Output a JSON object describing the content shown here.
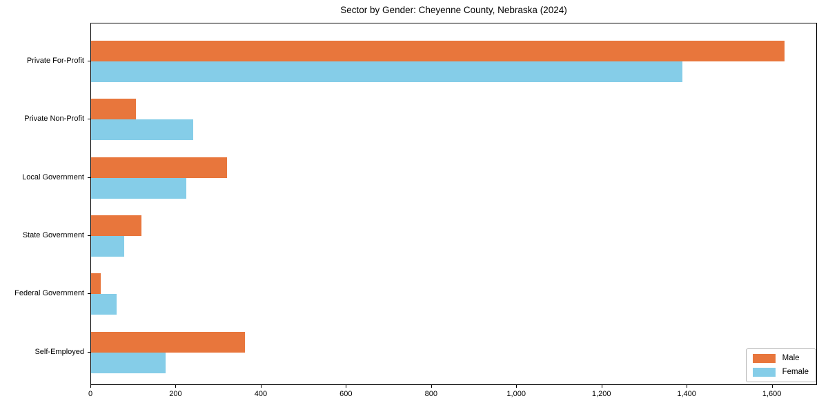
{
  "chart_data": {
    "type": "bar",
    "orientation": "horizontal",
    "title": "Sector by Gender: Cheyenne County, Nebraska (2024)",
    "categories": [
      "Private For-Profit",
      "Private Non-Profit",
      "Local Government",
      "State Government",
      "Federal Government",
      "Self-Employed"
    ],
    "series": [
      {
        "name": "Male",
        "color": "#e8763c",
        "values": [
          1628,
          105,
          319,
          118,
          23,
          361
        ]
      },
      {
        "name": "Female",
        "color": "#85cde8",
        "values": [
          1388,
          240,
          224,
          78,
          60,
          175
        ]
      }
    ],
    "xlabel": "",
    "ylabel": "",
    "xlim": [
      0,
      1706
    ],
    "x_ticks": [
      0,
      200,
      400,
      600,
      800,
      1000,
      1200,
      1400,
      1600
    ],
    "x_tick_labels": [
      "0",
      "200",
      "400",
      "600",
      "800",
      "1,000",
      "1,200",
      "1,400",
      "1,600"
    ],
    "grid": false,
    "legend_position": "lower right"
  },
  "colors": {
    "background": "#ffffff",
    "axis": "#000000",
    "text": "#000000",
    "legend_border": "#b3b3b3",
    "male": "#e8763c",
    "female": "#85cde8"
  }
}
